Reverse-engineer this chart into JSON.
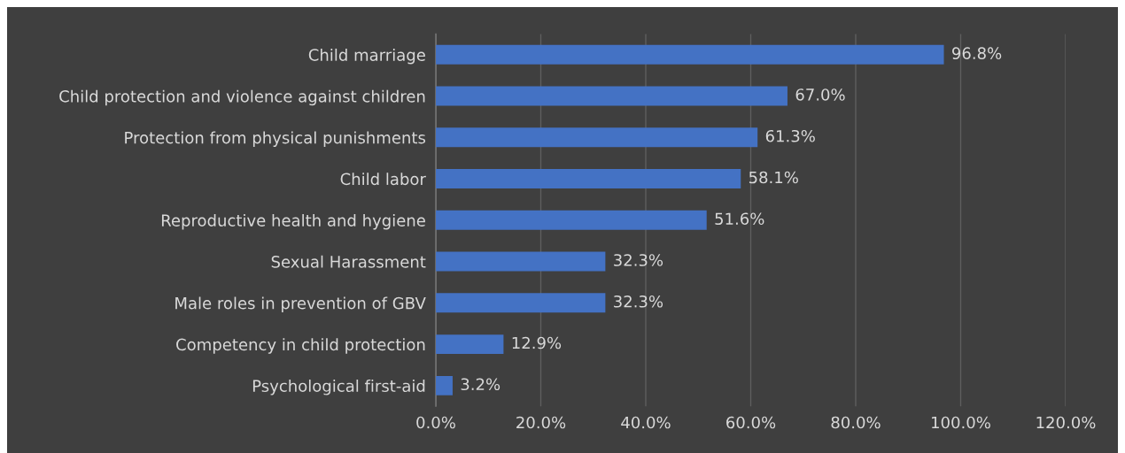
{
  "chart_data": {
    "type": "bar",
    "orientation": "horizontal",
    "categories": [
      "Child marriage",
      "Child protection and violence against children",
      "Protection from physical punishments",
      "Child labor",
      "Reproductive health and hygiene",
      "Sexual Harassment",
      "Male roles in prevention of GBV",
      "Competency in child protection",
      "Psychological first-aid"
    ],
    "values": [
      96.8,
      67.0,
      61.3,
      58.1,
      51.6,
      32.3,
      32.3,
      12.9,
      3.2
    ],
    "value_labels": [
      "96.8%",
      "67.0%",
      "61.3%",
      "58.1%",
      "51.6%",
      "32.3%",
      "32.3%",
      "12.9%",
      "3.2%"
    ],
    "color": "#4472c4",
    "xlim": [
      0,
      120
    ],
    "xticks": [
      {
        "value": 0,
        "label": "0.0%"
      },
      {
        "value": 20,
        "label": "20.0%"
      },
      {
        "value": 40,
        "label": "40.0%"
      },
      {
        "value": 60,
        "label": "60.0%"
      },
      {
        "value": 80,
        "label": "80.0%"
      },
      {
        "value": 100,
        "label": "100.0%"
      },
      {
        "value": 120,
        "label": "120.0%"
      }
    ],
    "grid": "x",
    "legend": false
  }
}
